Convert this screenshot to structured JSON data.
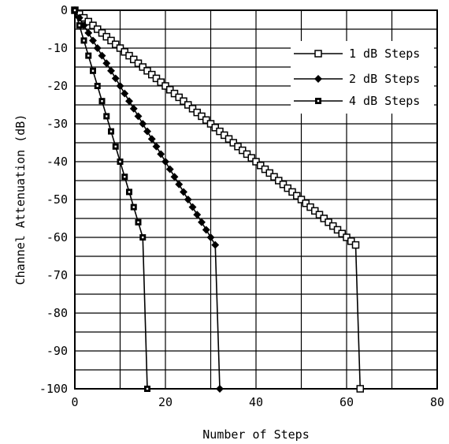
{
  "chart_data": {
    "type": "line",
    "xlabel": "Number of Steps",
    "ylabel": "Channel Attenuation (dB)",
    "xlim": [
      0,
      80
    ],
    "ylim": [
      -100,
      0
    ],
    "xticks": [
      0,
      20,
      40,
      60,
      80
    ],
    "yticks": [
      0,
      -10,
      -20,
      -30,
      -40,
      -50,
      -60,
      -70,
      -80,
      -90,
      -100
    ],
    "grid": true,
    "legend_position": "top-right",
    "colors": {
      "line": "#000000",
      "background": "#ffffff",
      "grid": "#000000"
    },
    "series": [
      {
        "name": "1 dB Steps",
        "marker": "open-square",
        "x": [
          0,
          1,
          2,
          3,
          4,
          5,
          6,
          7,
          8,
          9,
          10,
          11,
          12,
          13,
          14,
          15,
          16,
          17,
          18,
          19,
          20,
          21,
          22,
          23,
          24,
          25,
          26,
          27,
          28,
          29,
          30,
          31,
          32,
          33,
          34,
          35,
          36,
          37,
          38,
          39,
          40,
          41,
          42,
          43,
          44,
          45,
          46,
          47,
          48,
          49,
          50,
          51,
          52,
          53,
          54,
          55,
          56,
          57,
          58,
          59,
          60,
          61,
          62,
          63
        ],
        "y": [
          0,
          -1,
          -2,
          -3,
          -4,
          -5,
          -6,
          -7,
          -8,
          -9,
          -10,
          -11,
          -12,
          -13,
          -14,
          -15,
          -16,
          -17,
          -18,
          -19,
          -20,
          -21,
          -22,
          -23,
          -24,
          -25,
          -26,
          -27,
          -28,
          -29,
          -30,
          -31,
          -32,
          -33,
          -34,
          -35,
          -36,
          -37,
          -38,
          -39,
          -40,
          -41,
          -42,
          -43,
          -44,
          -45,
          -46,
          -47,
          -48,
          -49,
          -50,
          -51,
          -52,
          -53,
          -54,
          -55,
          -56,
          -57,
          -58,
          -59,
          -60,
          -61,
          -62,
          -100
        ]
      },
      {
        "name": "2 dB Steps",
        "marker": "filled-diamond",
        "x": [
          0,
          1,
          2,
          3,
          4,
          5,
          6,
          7,
          8,
          9,
          10,
          11,
          12,
          13,
          14,
          15,
          16,
          17,
          18,
          19,
          20,
          21,
          22,
          23,
          24,
          25,
          26,
          27,
          28,
          29,
          30,
          31,
          32
        ],
        "y": [
          0,
          -2,
          -4,
          -6,
          -8,
          -10,
          -12,
          -14,
          -16,
          -18,
          -20,
          -22,
          -24,
          -26,
          -28,
          -30,
          -32,
          -34,
          -36,
          -38,
          -40,
          -42,
          -44,
          -46,
          -48,
          -50,
          -52,
          -54,
          -56,
          -58,
          -60,
          -62,
          -100
        ]
      },
      {
        "name": "4 dB Steps",
        "marker": "dotted-square",
        "x": [
          0,
          1,
          2,
          3,
          4,
          5,
          6,
          7,
          8,
          9,
          10,
          11,
          12,
          13,
          14,
          15,
          16
        ],
        "y": [
          0,
          -4,
          -8,
          -12,
          -16,
          -20,
          -24,
          -28,
          -32,
          -36,
          -40,
          -44,
          -48,
          -52,
          -56,
          -60,
          -100
        ]
      }
    ]
  }
}
